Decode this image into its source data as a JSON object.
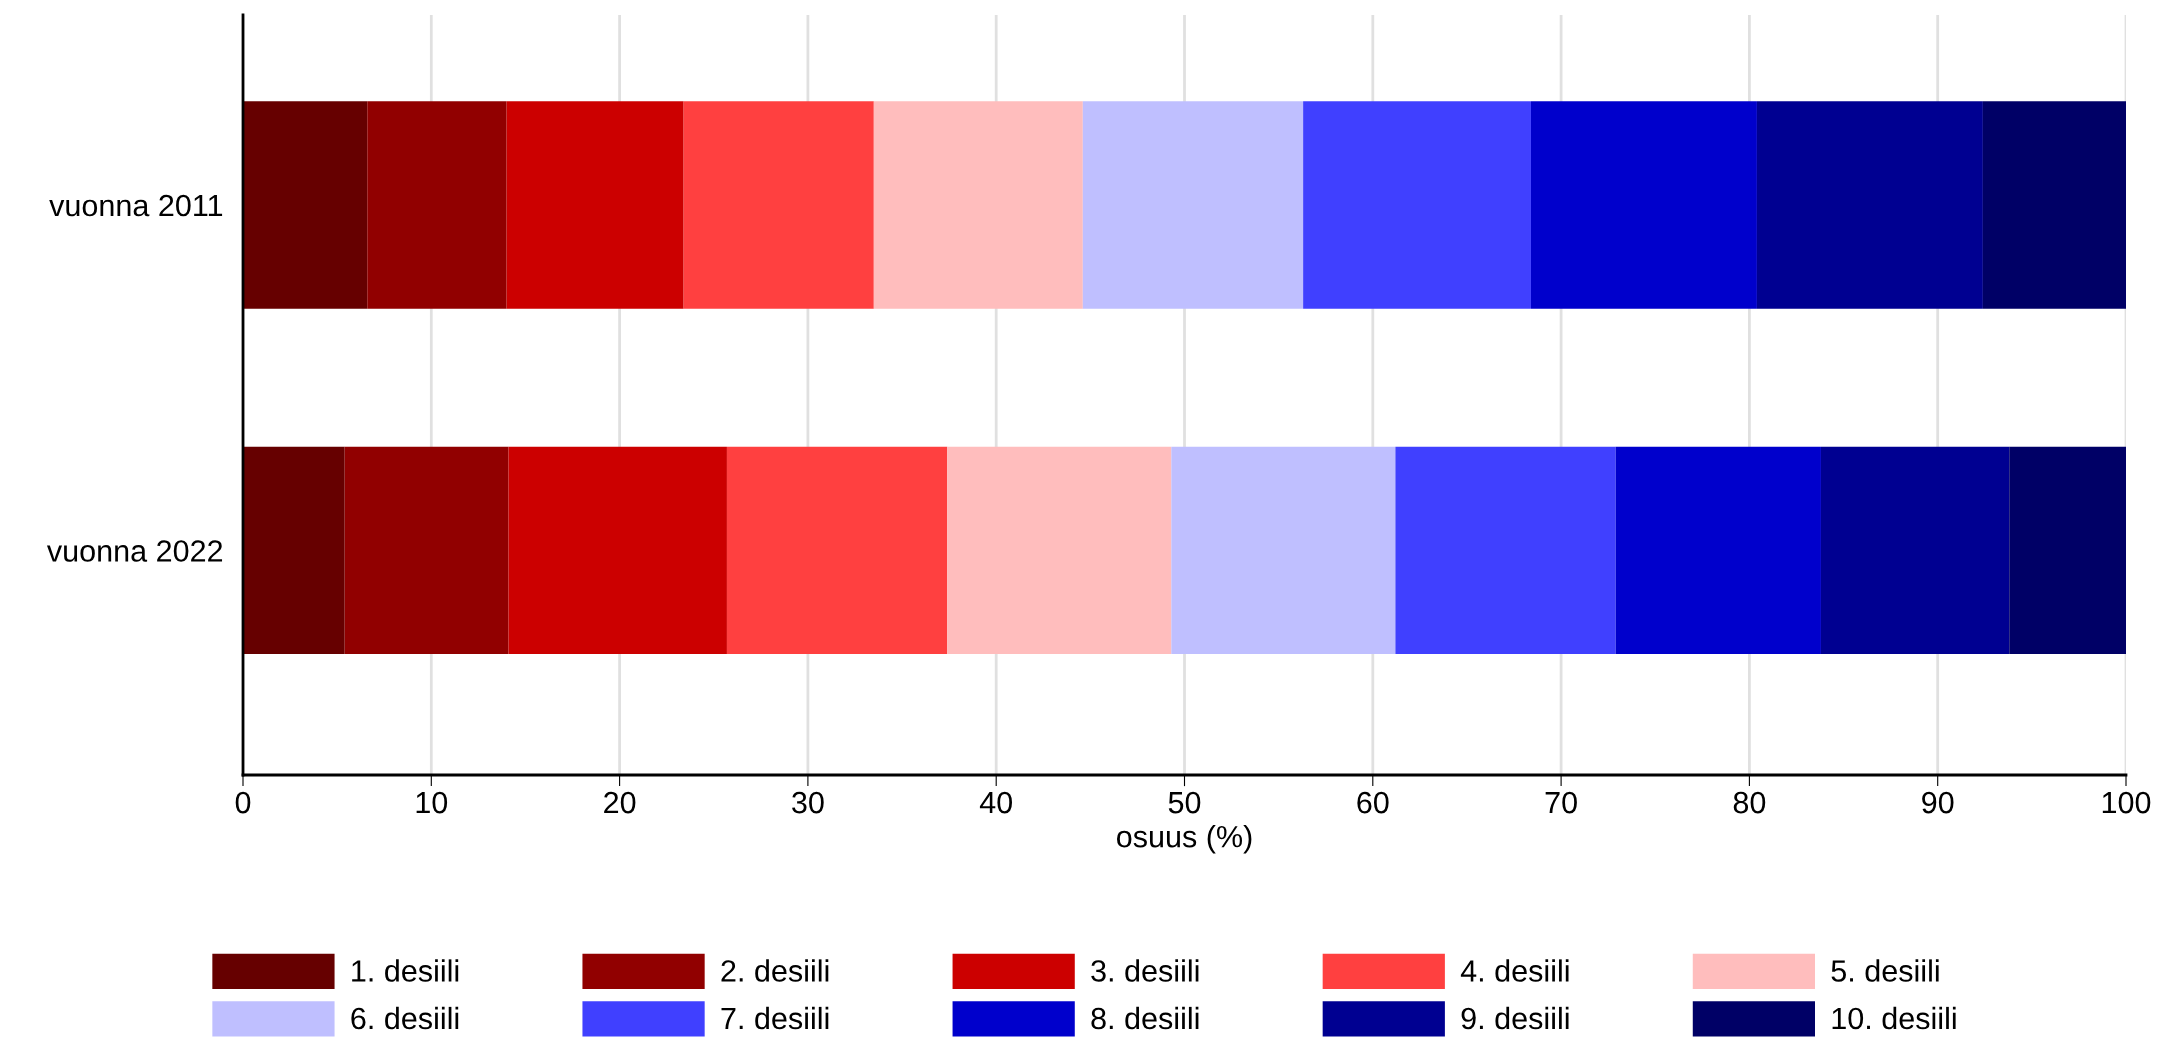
{
  "chart_data": {
    "type": "bar",
    "orientation": "horizontal",
    "stacked": true,
    "categories": [
      "vuonna 2011",
      "vuonna 2022"
    ],
    "series": [
      {
        "name": "1. desiili",
        "color": "#660000",
        "values": [
          6.6,
          5.4
        ]
      },
      {
        "name": "2. desiili",
        "color": "#910000",
        "values": [
          7.4,
          8.7
        ]
      },
      {
        "name": "3. desiili",
        "color": "#cc0000",
        "values": [
          9.4,
          11.6
        ]
      },
      {
        "name": "4. desiili",
        "color": "#ff4040",
        "values": [
          10.1,
          11.7
        ]
      },
      {
        "name": "5. desiili",
        "color": "#ffbdbd",
        "values": [
          11.1,
          11.9
        ]
      },
      {
        "name": "6. desiili",
        "color": "#bfbfff",
        "values": [
          11.7,
          11.9
        ]
      },
      {
        "name": "7. desiili",
        "color": "#4040ff",
        "values": [
          12.1,
          11.7
        ]
      },
      {
        "name": "8. desiili",
        "color": "#0000cc",
        "values": [
          12.0,
          10.9
        ]
      },
      {
        "name": "9. desiili",
        "color": "#000091",
        "values": [
          12.0,
          10.0
        ]
      },
      {
        "name": "10. desiili",
        "color": "#000066",
        "values": [
          7.6,
          6.2
        ]
      }
    ],
    "xlabel": "osuus (%)",
    "xlim": [
      0,
      100
    ],
    "xticks": [
      0,
      10,
      20,
      30,
      40,
      50,
      60,
      70,
      80,
      90,
      100
    ],
    "grid": "x",
    "legend": "bottom"
  }
}
